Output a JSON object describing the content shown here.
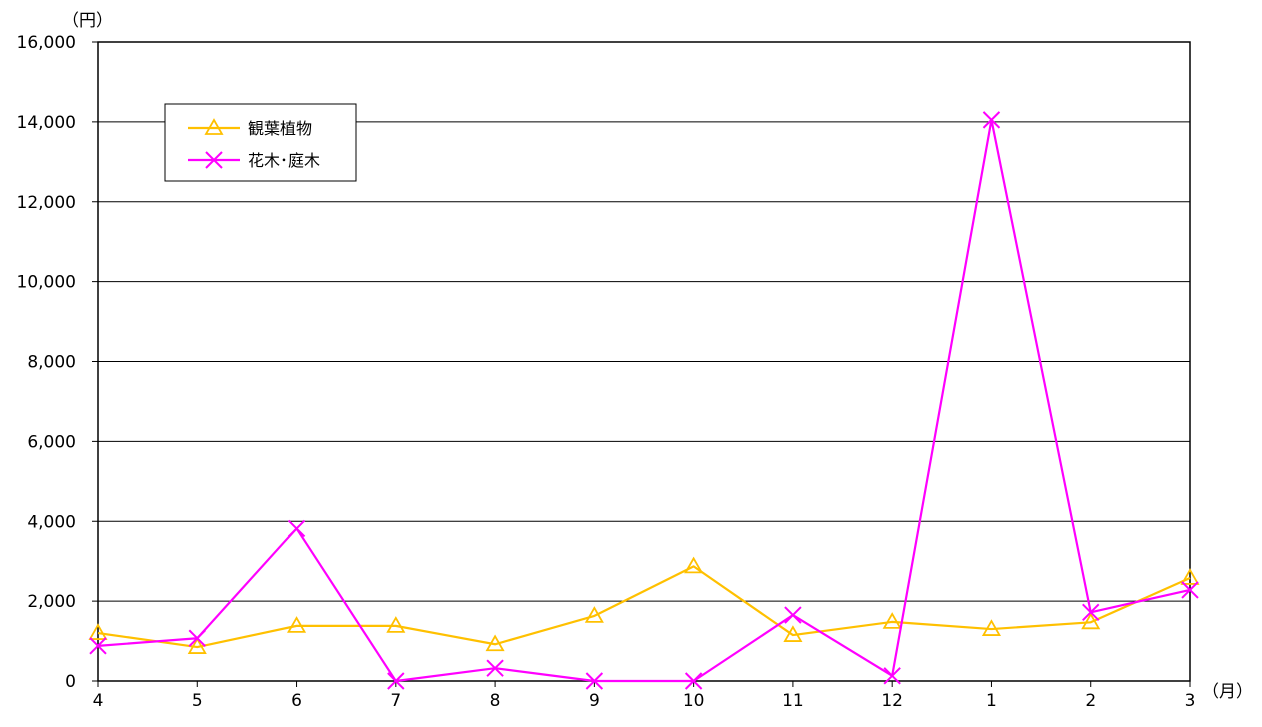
{
  "chart_data": {
    "type": "line",
    "categories": [
      "4",
      "5",
      "6",
      "7",
      "8",
      "9",
      "10",
      "11",
      "12",
      "1",
      "2",
      "3"
    ],
    "series": [
      {
        "name": "観葉植物",
        "color": "#FFC000",
        "marker": "triangle",
        "values": [
          1200,
          850,
          1380,
          1380,
          920,
          1630,
          2870,
          1150,
          1480,
          1300,
          1470,
          2580
        ]
      },
      {
        "name": "花木･庭木",
        "color": "#FF00FF",
        "marker": "x",
        "values": [
          880,
          1070,
          3820,
          0,
          320,
          0,
          0,
          1650,
          130,
          14050,
          1720,
          2280
        ]
      }
    ],
    "ylim": [
      0,
      16000
    ],
    "yticks": [
      0,
      2000,
      4000,
      6000,
      8000,
      10000,
      12000,
      14000,
      16000
    ],
    "ytick_labels": [
      "0",
      "2,000",
      "4,000",
      "6,000",
      "8,000",
      "10,000",
      "12,000",
      "14,000",
      "16,000"
    ],
    "y_unit_label": "（円）",
    "x_unit_label": "（月）",
    "grid": true,
    "legend_position": "top-left"
  }
}
